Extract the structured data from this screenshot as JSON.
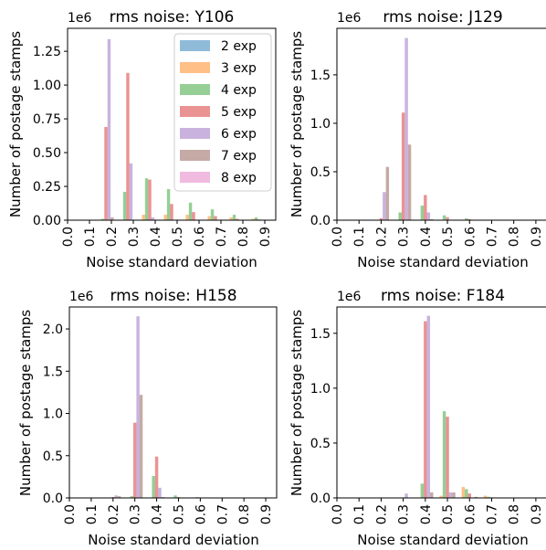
{
  "colors": {
    "2 exp": "#1f77b4",
    "3 exp": "#ff7f0e",
    "4 exp": "#2ca02c",
    "5 exp": "#d62728",
    "6 exp": "#9467bd",
    "7 exp": "#8c564b",
    "8 exp": "#e377c2"
  },
  "chart_data": [
    {
      "type": "bar",
      "title": "rms noise: Y106",
      "xlabel": "Noise standard deviation",
      "ylabel": "Number of postage stamps",
      "scale_label": "1e6",
      "xlim": [
        0,
        0.95
      ],
      "ylim": [
        0,
        1.42
      ],
      "xticks": [
        0.0,
        0.1,
        0.2,
        0.3,
        0.4,
        0.5,
        0.6,
        0.7,
        0.8,
        0.9
      ],
      "xtick_labels": [
        "0.0",
        "0.1",
        "0.2",
        "0.3",
        "0.4",
        "0.5",
        "0.6",
        "0.7",
        "0.8",
        "0.9"
      ],
      "yticks": [
        0,
        0.25,
        0.5,
        0.75,
        1.0,
        1.25
      ],
      "ytick_labels": [
        "0.00",
        "0.25",
        "0.50",
        "0.75",
        "1.00",
        "1.25"
      ],
      "legend": {
        "position": "top-right",
        "entries": [
          "2 exp",
          "3 exp",
          "4 exp",
          "5 exp",
          "6 exp",
          "7 exp",
          "8 exp"
        ]
      },
      "bins": [
        0.175,
        0.275,
        0.375,
        0.475,
        0.575,
        0.675,
        0.775,
        0.875
      ],
      "series": [
        {
          "name": "2 exp",
          "values": [
            0,
            0,
            0,
            0,
            0,
            0,
            0,
            0
          ]
        },
        {
          "name": "3 exp",
          "values": [
            0,
            0,
            0.04,
            0.04,
            0.04,
            0.03,
            0.02,
            0.01
          ]
        },
        {
          "name": "4 exp",
          "values": [
            0.01,
            0.21,
            0.31,
            0.23,
            0.13,
            0.08,
            0.04,
            0.02
          ]
        },
        {
          "name": "5 exp",
          "values": [
            0.69,
            1.09,
            0.3,
            0.12,
            0.06,
            0.03,
            0.01,
            0.005
          ]
        },
        {
          "name": "6 exp",
          "values": [
            1.34,
            0.42,
            0.02,
            0,
            0,
            0,
            0,
            0
          ]
        },
        {
          "name": "7 exp",
          "values": [
            0.02,
            0,
            0,
            0,
            0,
            0,
            0,
            0
          ]
        },
        {
          "name": "8 exp",
          "values": [
            0,
            0,
            0,
            0,
            0,
            0,
            0,
            0
          ]
        }
      ]
    },
    {
      "type": "bar",
      "title": "rms noise: J129",
      "xlabel": "Noise standard deviation",
      "ylabel": "Number of postage stamps",
      "scale_label": "1e6",
      "xlim": [
        0,
        0.95
      ],
      "ylim": [
        0,
        1.98
      ],
      "xticks": [
        0.0,
        0.1,
        0.2,
        0.3,
        0.4,
        0.5,
        0.6,
        0.7,
        0.8,
        0.9
      ],
      "xtick_labels": [
        "0.0",
        "0.1",
        "0.2",
        "0.3",
        "0.4",
        "0.5",
        "0.6",
        "0.7",
        "0.8",
        "0.9"
      ],
      "yticks": [
        0,
        0.5,
        1.0,
        1.5
      ],
      "ytick_labels": [
        "0.0",
        "0.5",
        "1.0",
        "1.5"
      ],
      "bins": [
        0.2,
        0.3,
        0.4,
        0.5,
        0.6,
        0.7
      ],
      "series": [
        {
          "name": "2 exp",
          "values": [
            0,
            0,
            0,
            0,
            0,
            0
          ]
        },
        {
          "name": "3 exp",
          "values": [
            0,
            0,
            0,
            0,
            0,
            0
          ]
        },
        {
          "name": "4 exp",
          "values": [
            0,
            0.08,
            0.15,
            0.05,
            0.02,
            0.005
          ]
        },
        {
          "name": "5 exp",
          "values": [
            0.02,
            1.11,
            0.26,
            0.03,
            0.01,
            0
          ]
        },
        {
          "name": "6 exp",
          "values": [
            0.29,
            1.88,
            0.08,
            0,
            0,
            0
          ]
        },
        {
          "name": "7 exp",
          "values": [
            0.55,
            0.78,
            0.01,
            0,
            0,
            0
          ]
        },
        {
          "name": "8 exp",
          "values": [
            0,
            0,
            0,
            0,
            0,
            0
          ]
        }
      ]
    },
    {
      "type": "bar",
      "title": "rms noise: H158",
      "xlabel": "Noise standard deviation",
      "ylabel": "Number of postage stamps",
      "scale_label": "1e6",
      "xlim": [
        0,
        0.95
      ],
      "ylim": [
        0,
        2.26
      ],
      "xticks": [
        0.0,
        0.1,
        0.2,
        0.3,
        0.4,
        0.5,
        0.6,
        0.7,
        0.8,
        0.9
      ],
      "xtick_labels": [
        "0.0",
        "0.1",
        "0.2",
        "0.3",
        "0.4",
        "0.5",
        "0.6",
        "0.7",
        "0.8",
        "0.9"
      ],
      "yticks": [
        0,
        0.5,
        1.0,
        1.5,
        2.0
      ],
      "ytick_labels": [
        "0.0",
        "0.5",
        "1.0",
        "1.5",
        "2.0"
      ],
      "bins": [
        0.2,
        0.3,
        0.4,
        0.5,
        0.6
      ],
      "series": [
        {
          "name": "2 exp",
          "values": [
            0,
            0,
            0,
            0,
            0
          ]
        },
        {
          "name": "3 exp",
          "values": [
            0,
            0,
            0,
            0,
            0
          ]
        },
        {
          "name": "4 exp",
          "values": [
            0,
            0.02,
            0.26,
            0.03,
            0.01
          ]
        },
        {
          "name": "5 exp",
          "values": [
            0.01,
            0.89,
            0.49,
            0.01,
            0
          ]
        },
        {
          "name": "6 exp",
          "values": [
            0.03,
            2.15,
            0.12,
            0,
            0
          ]
        },
        {
          "name": "7 exp",
          "values": [
            0.02,
            1.22,
            0.01,
            0,
            0
          ]
        },
        {
          "name": "8 exp",
          "values": [
            0,
            0,
            0,
            0,
            0
          ]
        }
      ]
    },
    {
      "type": "bar",
      "title": "rms noise: F184",
      "xlabel": "Noise standard deviation",
      "ylabel": "Number of postage stamps",
      "scale_label": "1e6",
      "xlim": [
        0,
        0.95
      ],
      "ylim": [
        0,
        1.74
      ],
      "xticks": [
        0.0,
        0.1,
        0.2,
        0.3,
        0.4,
        0.5,
        0.6,
        0.7,
        0.8,
        0.9
      ],
      "xtick_labels": [
        "0.0",
        "0.1",
        "0.2",
        "0.3",
        "0.4",
        "0.5",
        "0.6",
        "0.7",
        "0.8",
        "0.9"
      ],
      "yticks": [
        0,
        0.5,
        1.0,
        1.5
      ],
      "ytick_labels": [
        "0.0",
        "0.5",
        "1.0",
        "1.5"
      ],
      "bins": [
        0.3,
        0.4,
        0.5,
        0.6,
        0.7
      ],
      "series": [
        {
          "name": "2 exp",
          "values": [
            0,
            0,
            0,
            0,
            0
          ]
        },
        {
          "name": "3 exp",
          "values": [
            0,
            0,
            0.02,
            0.1,
            0.02
          ]
        },
        {
          "name": "4 exp",
          "values": [
            0,
            0.13,
            0.79,
            0.08,
            0.01
          ]
        },
        {
          "name": "5 exp",
          "values": [
            0,
            1.61,
            0.74,
            0.04,
            0.005
          ]
        },
        {
          "name": "6 exp",
          "values": [
            0.04,
            1.66,
            0.05,
            0,
            0
          ]
        },
        {
          "name": "7 exp",
          "values": [
            0,
            0.05,
            0.05,
            0.01,
            0
          ]
        },
        {
          "name": "8 exp",
          "values": [
            0,
            0,
            0,
            0,
            0
          ]
        }
      ]
    }
  ]
}
